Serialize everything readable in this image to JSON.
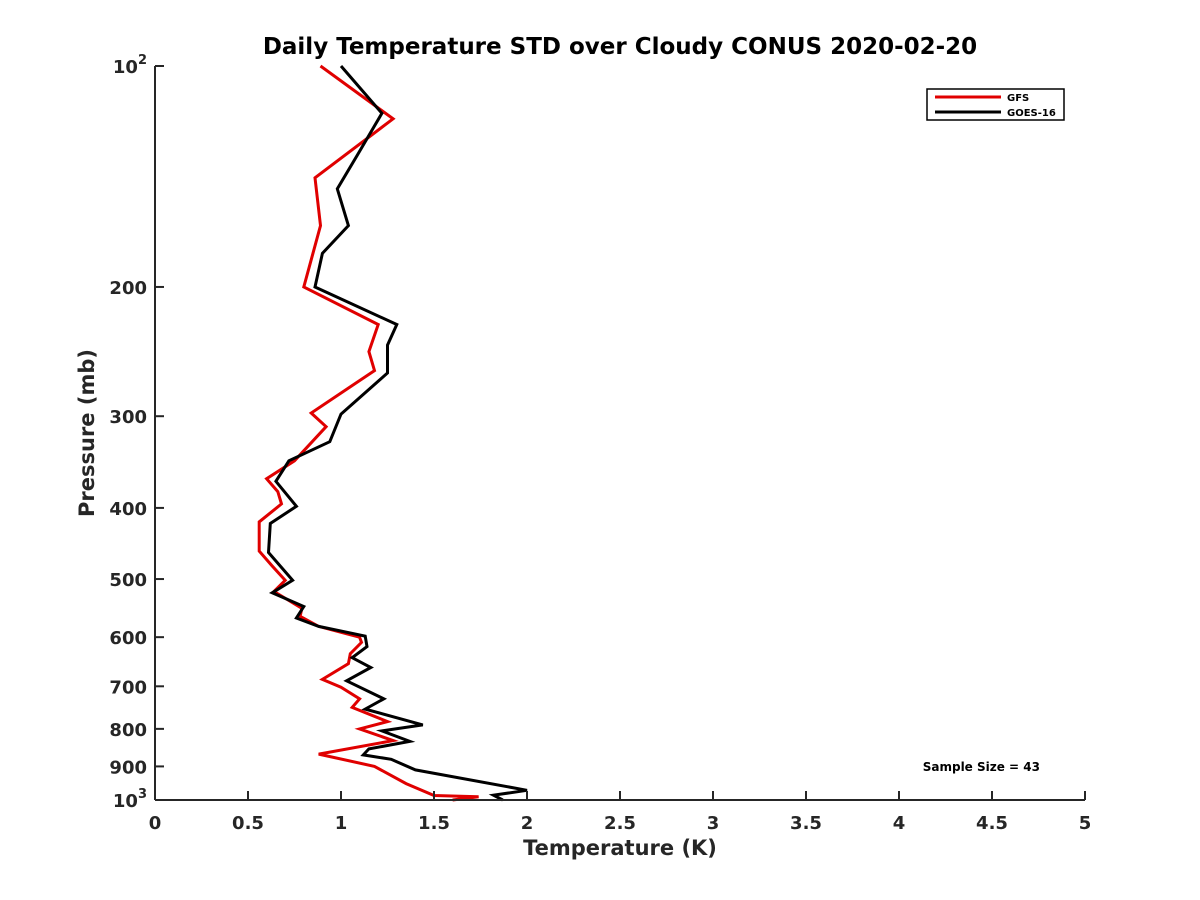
{
  "chart_data": {
    "type": "line",
    "title": "Daily Temperature STD over Cloudy CONUS 2020-02-20",
    "xlabel": "Temperature (K)",
    "ylabel": "Pressure (mb)",
    "xlim": [
      0,
      5
    ],
    "ylim": [
      100,
      1000
    ],
    "y_scale": "log",
    "y_reversed": true,
    "grid": false,
    "legend_position": "top-right",
    "x_ticks": [
      0,
      0.5,
      1,
      1.5,
      2,
      2.5,
      3,
      3.5,
      4,
      4.5,
      5
    ],
    "x_tick_labels": [
      "0",
      "0.5",
      "1",
      "1.5",
      "2",
      "2.5",
      "3",
      "3.5",
      "4",
      "4.5",
      "5"
    ],
    "y_ticks": [
      100,
      200,
      300,
      400,
      500,
      600,
      700,
      800,
      900,
      1000
    ],
    "y_tick_labels": [
      {
        "base": "10",
        "exp": "2"
      },
      {
        "base": "200",
        "exp": ""
      },
      {
        "base": "300",
        "exp": ""
      },
      {
        "base": "400",
        "exp": ""
      },
      {
        "base": "500",
        "exp": ""
      },
      {
        "base": "600",
        "exp": ""
      },
      {
        "base": "700",
        "exp": ""
      },
      {
        "base": "800",
        "exp": ""
      },
      {
        "base": "900",
        "exp": ""
      },
      {
        "base": "10",
        "exp": "3"
      }
    ],
    "series": [
      {
        "name": "GFS",
        "color": "#e00000",
        "points": [
          [
            0.89,
            100
          ],
          [
            1.28,
            118
          ],
          [
            0.86,
            142
          ],
          [
            0.89,
            165
          ],
          [
            0.8,
            200
          ],
          [
            1.2,
            225
          ],
          [
            1.15,
            245
          ],
          [
            1.18,
            260
          ],
          [
            0.84,
            297
          ],
          [
            0.92,
            310
          ],
          [
            0.75,
            345
          ],
          [
            0.6,
            365
          ],
          [
            0.66,
            380
          ],
          [
            0.68,
            395
          ],
          [
            0.56,
            418
          ],
          [
            0.56,
            458
          ],
          [
            0.63,
            480
          ],
          [
            0.7,
            502
          ],
          [
            0.64,
            520
          ],
          [
            0.79,
            548
          ],
          [
            0.78,
            562
          ],
          [
            0.88,
            580
          ],
          [
            1.1,
            600
          ],
          [
            1.11,
            610
          ],
          [
            1.05,
            632
          ],
          [
            1.04,
            652
          ],
          [
            0.9,
            685
          ],
          [
            1.0,
            702
          ],
          [
            1.1,
            728
          ],
          [
            1.06,
            748
          ],
          [
            1.25,
            782
          ],
          [
            1.1,
            800
          ],
          [
            1.28,
            830
          ],
          [
            0.88,
            866
          ],
          [
            1.18,
            900
          ],
          [
            1.35,
            950
          ],
          [
            1.5,
            986
          ],
          [
            1.74,
            990
          ],
          [
            1.6,
            1000
          ]
        ]
      },
      {
        "name": "GOES-16",
        "color": "#000000",
        "points": [
          [
            1.0,
            100
          ],
          [
            1.22,
            116
          ],
          [
            1.09,
            132
          ],
          [
            0.98,
            147
          ],
          [
            1.04,
            165
          ],
          [
            0.9,
            180
          ],
          [
            0.86,
            200
          ],
          [
            1.3,
            225
          ],
          [
            1.25,
            240
          ],
          [
            1.25,
            262
          ],
          [
            1.0,
            298
          ],
          [
            0.94,
            325
          ],
          [
            0.72,
            345
          ],
          [
            0.65,
            368
          ],
          [
            0.76,
            398
          ],
          [
            0.62,
            420
          ],
          [
            0.61,
            460
          ],
          [
            0.74,
            502
          ],
          [
            0.63,
            522
          ],
          [
            0.8,
            545
          ],
          [
            0.76,
            565
          ],
          [
            0.88,
            580
          ],
          [
            1.13,
            598
          ],
          [
            1.14,
            618
          ],
          [
            1.06,
            640
          ],
          [
            1.16,
            660
          ],
          [
            1.03,
            688
          ],
          [
            1.23,
            728
          ],
          [
            1.13,
            752
          ],
          [
            1.44,
            790
          ],
          [
            1.22,
            805
          ],
          [
            1.37,
            832
          ],
          [
            1.15,
            852
          ],
          [
            1.12,
            868
          ],
          [
            1.27,
            880
          ],
          [
            1.4,
            910
          ],
          [
            2.0,
            970
          ],
          [
            1.82,
            985
          ],
          [
            1.87,
            1000
          ]
        ]
      }
    ],
    "annotation": "Sample Size = 43"
  }
}
